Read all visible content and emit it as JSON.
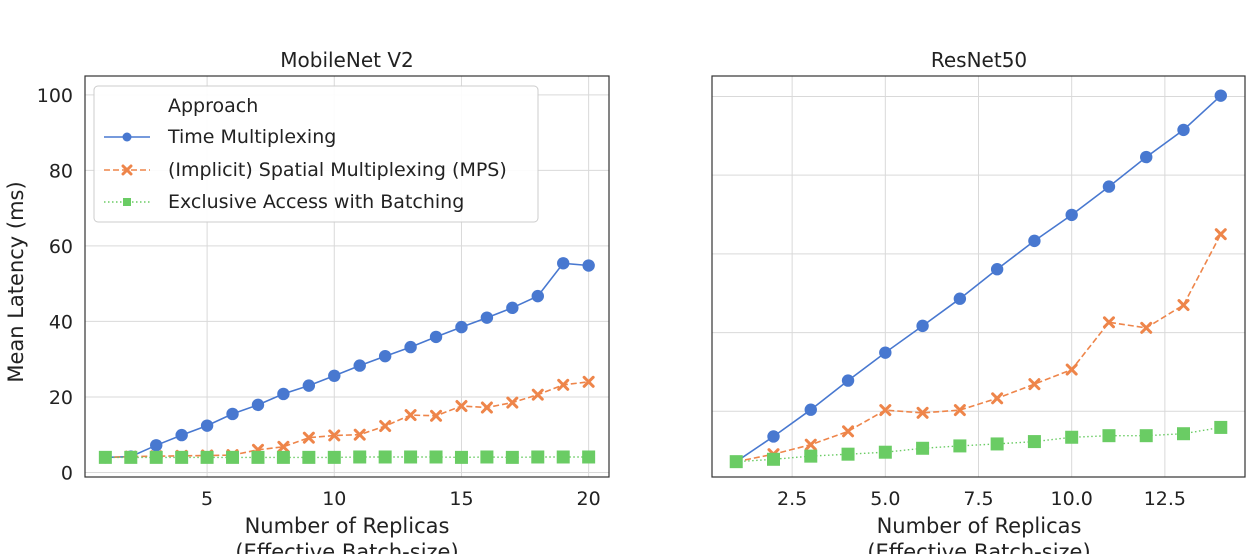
{
  "colors": {
    "time": "#4878d0",
    "mps": "#ee854a",
    "batch": "#6acc64"
  },
  "chart_data": [
    {
      "type": "line",
      "title": "MobileNet V2",
      "xlabel": "Number of Replicas",
      "xlabel2": "(Effective Batch-size)",
      "ylabel": "Mean Latency (ms)",
      "xticks": [
        "5",
        "10",
        "15",
        "20"
      ],
      "yticks": [
        "0",
        "20",
        "40",
        "60",
        "80",
        "100"
      ],
      "legend": {
        "title": "Approach",
        "placement": "upper-left"
      },
      "x": [
        1,
        2,
        3,
        4,
        5,
        6,
        7,
        8,
        9,
        10,
        11,
        12,
        13,
        14,
        15,
        16,
        17,
        18,
        19,
        20
      ],
      "series": [
        {
          "name": "Time Multiplexing",
          "marker": "circle",
          "values": [
            4.0,
            4.2,
            7.2,
            9.9,
            12.4,
            15.5,
            17.9,
            20.8,
            23.0,
            25.6,
            28.3,
            30.8,
            33.2,
            35.9,
            38.5,
            41.0,
            43.6,
            46.7,
            55.4,
            54.8
          ]
        },
        {
          "name": "(Implicit) Spatial Multiplexing (MPS)",
          "marker": "x",
          "values": [
            4.0,
            4.2,
            4.3,
            4.4,
            4.5,
            4.6,
            6.0,
            6.8,
            9.2,
            9.8,
            10.0,
            12.3,
            15.2,
            15.0,
            17.6,
            17.2,
            18.5,
            20.6,
            23.2,
            24.0
          ]
        },
        {
          "name": "Exclusive Access with Batching",
          "marker": "square",
          "values": [
            4.0,
            4.0,
            4.0,
            4.0,
            4.0,
            4.0,
            4.0,
            4.0,
            4.0,
            4.0,
            4.1,
            4.1,
            4.1,
            4.1,
            4.0,
            4.1,
            4.0,
            4.1,
            4.1,
            4.1
          ]
        }
      ]
    },
    {
      "type": "line",
      "title": "ResNet50",
      "xlabel": "Number of Replicas",
      "xlabel2": "(Effective Batch-size)",
      "xticks": [
        "2.5",
        "5.0",
        "7.5",
        "10.0",
        "12.5"
      ],
      "x": [
        1,
        2,
        3,
        4,
        5,
        6,
        7,
        8,
        9,
        10,
        11,
        12,
        13,
        14
      ],
      "series": [
        {
          "name": "Time Multiplexing",
          "marker": "circle",
          "values": [
            7.2,
            13.6,
            20.4,
            27.8,
            34.9,
            41.7,
            48.6,
            56.1,
            63.3,
            69.9,
            77.1,
            84.6,
            91.5,
            100.2
          ]
        },
        {
          "name": "(Implicit) Spatial Multiplexing (MPS)",
          "marker": "x",
          "values": [
            7.2,
            9.1,
            11.5,
            14.9,
            20.3,
            19.6,
            20.3,
            23.3,
            26.9,
            30.6,
            42.6,
            41.2,
            47.0,
            65.0
          ]
        },
        {
          "name": "Exclusive Access with Batching",
          "marker": "square",
          "values": [
            7.2,
            7.8,
            8.6,
            9.1,
            9.6,
            10.6,
            11.2,
            11.7,
            12.3,
            13.4,
            13.8,
            13.8,
            14.3,
            15.9
          ]
        }
      ]
    }
  ]
}
